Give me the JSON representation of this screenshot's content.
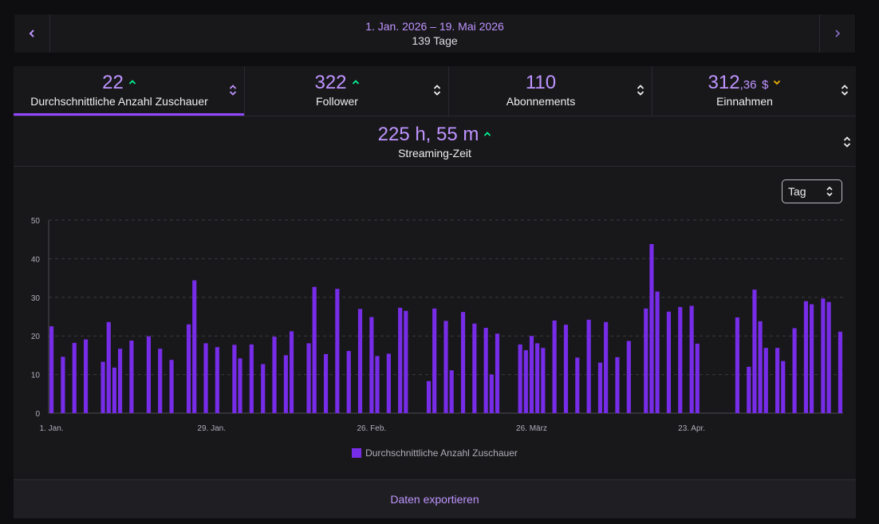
{
  "date_range": {
    "label": "1. Jan. 2026 – 19. Mai 2026",
    "days": "139 Tage"
  },
  "metrics": {
    "avg_viewers": {
      "value": "22",
      "label": "Durchschnittliche Anzahl Zuschauer",
      "trend": "up"
    },
    "followers": {
      "value": "322",
      "label": "Follower",
      "trend": "up"
    },
    "subscriptions": {
      "value": "110",
      "label": "Abonnements"
    },
    "revenue": {
      "value_main": "312",
      "value_decimal": ",36",
      "currency": "$",
      "label": "Einnahmen",
      "trend": "down"
    },
    "streaming_time": {
      "value": "225 h, 55 m",
      "label": "Streaming-Zeit",
      "trend": "up"
    }
  },
  "interval_select": {
    "value": "Tag"
  },
  "export_button": {
    "label": "Daten exportieren"
  },
  "colors": {
    "accent": "#bf94ff",
    "bar": "#772ce8",
    "trend_up": "#00f593",
    "trend_down": "#f5b400",
    "active_tab": "#9147ff"
  },
  "chart_data": {
    "type": "bar",
    "x_start": "2026-01-01",
    "x_end": "2026-05-19",
    "x_ticks": [
      {
        "date": "2026-01-01",
        "label": "1. Jan."
      },
      {
        "date": "2026-01-29",
        "label": "29. Jan."
      },
      {
        "date": "2026-02-26",
        "label": "26. Feb."
      },
      {
        "date": "2026-03-26",
        "label": "26. März"
      },
      {
        "date": "2026-04-23",
        "label": "23. Apr."
      }
    ],
    "y_ticks": [
      0,
      10,
      20,
      30,
      40,
      50
    ],
    "ylim": [
      0,
      50
    ],
    "grid": true,
    "legend_position": "bottom",
    "series": [
      {
        "name": "Durchschnittliche Anzahl Zuschauer",
        "points": [
          [
            "2026-01-01",
            22.5
          ],
          [
            "2026-01-03",
            14.6
          ],
          [
            "2026-01-05",
            18.2
          ],
          [
            "2026-01-07",
            19.1
          ],
          [
            "2026-01-10",
            13.3
          ],
          [
            "2026-01-11",
            23.6
          ],
          [
            "2026-01-12",
            11.8
          ],
          [
            "2026-01-13",
            16.7
          ],
          [
            "2026-01-15",
            18.8
          ],
          [
            "2026-01-18",
            19.9
          ],
          [
            "2026-01-20",
            16.7
          ],
          [
            "2026-01-22",
            13.8
          ],
          [
            "2026-01-25",
            23.0
          ],
          [
            "2026-01-26",
            34.4
          ],
          [
            "2026-01-28",
            18.1
          ],
          [
            "2026-01-30",
            17.1
          ],
          [
            "2026-02-02",
            17.7
          ],
          [
            "2026-02-03",
            14.2
          ],
          [
            "2026-02-05",
            17.8
          ],
          [
            "2026-02-07",
            12.7
          ],
          [
            "2026-02-09",
            19.8
          ],
          [
            "2026-02-11",
            15.0
          ],
          [
            "2026-02-12",
            21.2
          ],
          [
            "2026-02-15",
            18.1
          ],
          [
            "2026-02-16",
            32.7
          ],
          [
            "2026-02-18",
            15.3
          ],
          [
            "2026-02-20",
            32.2
          ],
          [
            "2026-02-22",
            16.1
          ],
          [
            "2026-02-24",
            27.0
          ],
          [
            "2026-02-26",
            24.9
          ],
          [
            "2026-02-27",
            14.8
          ],
          [
            "2026-03-01",
            15.4
          ],
          [
            "2026-03-03",
            27.3
          ],
          [
            "2026-03-04",
            26.5
          ],
          [
            "2026-03-08",
            8.3
          ],
          [
            "2026-03-09",
            27.1
          ],
          [
            "2026-03-11",
            23.9
          ],
          [
            "2026-03-12",
            11.1
          ],
          [
            "2026-03-14",
            26.2
          ],
          [
            "2026-03-16",
            23.2
          ],
          [
            "2026-03-18",
            22.1
          ],
          [
            "2026-03-19",
            10.0
          ],
          [
            "2026-03-20",
            20.6
          ],
          [
            "2026-03-24",
            17.8
          ],
          [
            "2026-03-25",
            16.3
          ],
          [
            "2026-03-26",
            20.0
          ],
          [
            "2026-03-27",
            18.1
          ],
          [
            "2026-03-28",
            16.9
          ],
          [
            "2026-03-30",
            24.0
          ],
          [
            "2026-04-01",
            22.9
          ],
          [
            "2026-04-03",
            14.4
          ],
          [
            "2026-04-05",
            24.2
          ],
          [
            "2026-04-07",
            13.1
          ],
          [
            "2026-04-08",
            23.6
          ],
          [
            "2026-04-10",
            14.5
          ],
          [
            "2026-04-12",
            18.7
          ],
          [
            "2026-04-15",
            27.1
          ],
          [
            "2026-04-16",
            43.8
          ],
          [
            "2026-04-17",
            31.5
          ],
          [
            "2026-04-19",
            26.3
          ],
          [
            "2026-04-21",
            27.5
          ],
          [
            "2026-04-23",
            27.8
          ],
          [
            "2026-04-24",
            18.0
          ],
          [
            "2026-05-01",
            24.8
          ],
          [
            "2026-05-03",
            12.0
          ],
          [
            "2026-05-04",
            32.0
          ],
          [
            "2026-05-05",
            23.8
          ],
          [
            "2026-05-06",
            16.9
          ],
          [
            "2026-05-08",
            16.9
          ],
          [
            "2026-05-09",
            13.5
          ],
          [
            "2026-05-11",
            22.0
          ],
          [
            "2026-05-13",
            29.0
          ],
          [
            "2026-05-14",
            28.2
          ],
          [
            "2026-05-16",
            29.7
          ],
          [
            "2026-05-17",
            28.8
          ],
          [
            "2026-05-19",
            21.1
          ]
        ]
      }
    ]
  }
}
